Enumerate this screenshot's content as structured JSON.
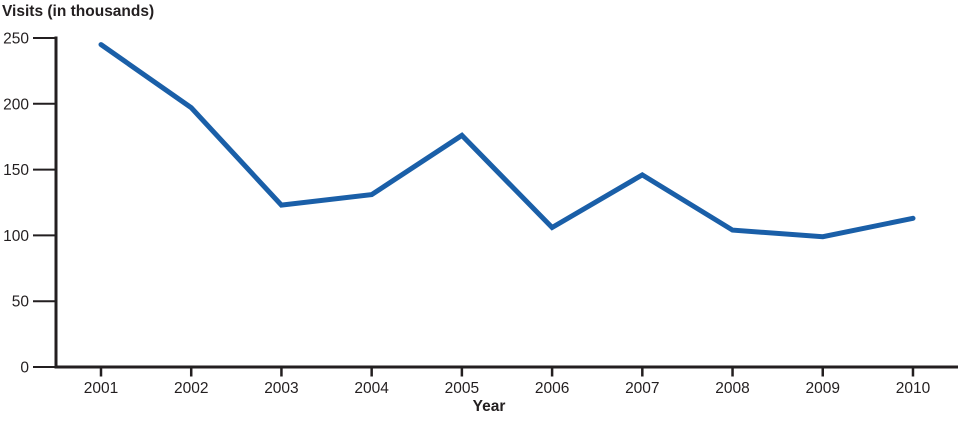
{
  "page": {
    "background": "#ffffff",
    "text_color": "#231f20"
  },
  "chart_data": {
    "type": "line",
    "title": "",
    "ylabel": "Visits (in thousands)",
    "xlabel": "Year",
    "categories": [
      "2001",
      "2002",
      "2003",
      "2004",
      "2005",
      "2006",
      "2007",
      "2008",
      "2009",
      "2010"
    ],
    "series": [
      {
        "name": "Visits",
        "values": [
          245,
          197,
          123,
          131,
          176,
          106,
          146,
          104,
          99,
          113
        ],
        "color": "#1a5fa8"
      }
    ],
    "yticks": [
      0,
      50,
      100,
      150,
      200,
      250
    ],
    "ylim": [
      0,
      250
    ],
    "grid": false,
    "legend": "none",
    "axis_color": "#231f20"
  }
}
